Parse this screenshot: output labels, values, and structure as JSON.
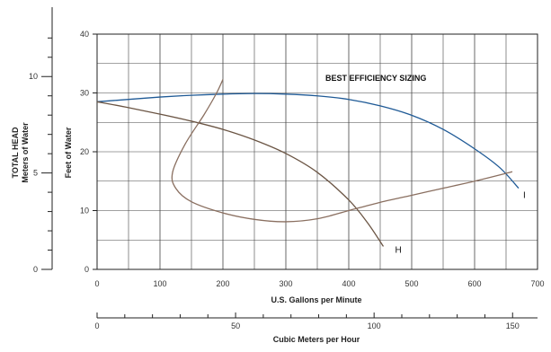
{
  "chart_data": {
    "type": "line",
    "title": "",
    "annotation": "BEST EFFICIENCY SIZING",
    "xlabel": "U.S. Gallons per Minute",
    "ylabel": "Feet of Water",
    "xlim": [
      0,
      700
    ],
    "ylim": [
      0,
      40
    ],
    "x_ticks": [
      "0",
      "100",
      "200",
      "300",
      "400",
      "500",
      "600",
      "700"
    ],
    "y_ticks": [
      "0",
      "10",
      "20",
      "30",
      "40"
    ],
    "grid": true,
    "secondary_x": {
      "label": "Cubic Meters per Hour",
      "range": [
        0,
        159
      ],
      "ticks": [
        "0",
        "50",
        "100",
        "150"
      ]
    },
    "secondary_y": {
      "label_line1": "TOTAL HEAD",
      "label_line2": "Meters of Water",
      "range": [
        0,
        12.2
      ],
      "ticks": [
        "0",
        "5",
        "10"
      ]
    },
    "series": [
      {
        "name": "I",
        "color": "#1f5a96",
        "x": [
          0,
          50,
          100,
          150,
          200,
          250,
          300,
          350,
          400,
          450,
          500,
          550,
          600,
          640,
          670
        ],
        "y": [
          28.5,
          28.9,
          29.3,
          29.6,
          29.8,
          29.9,
          29.8,
          29.5,
          28.9,
          27.8,
          26.2,
          23.8,
          20.5,
          17.3,
          13.8
        ]
      },
      {
        "name": "H",
        "color": "#6b5544",
        "x": [
          0,
          50,
          100,
          150,
          200,
          250,
          300,
          350,
          400,
          430,
          455
        ],
        "y": [
          28.5,
          27.5,
          26.4,
          25.2,
          23.8,
          22.0,
          19.7,
          16.5,
          11.8,
          7.9,
          3.9
        ]
      },
      {
        "name": "",
        "color": "#8a6f60",
        "x": [
          200,
          190,
          170,
          140,
          120,
          125,
          150,
          200,
          250,
          300,
          350,
          400,
          450,
          500,
          550,
          600,
          660
        ],
        "y": [
          32.3,
          30.0,
          26.3,
          21.3,
          16.5,
          13.8,
          11.5,
          9.6,
          8.5,
          8.1,
          8.6,
          10.0,
          11.4,
          12.6,
          13.8,
          15.0,
          16.6
        ]
      }
    ]
  }
}
